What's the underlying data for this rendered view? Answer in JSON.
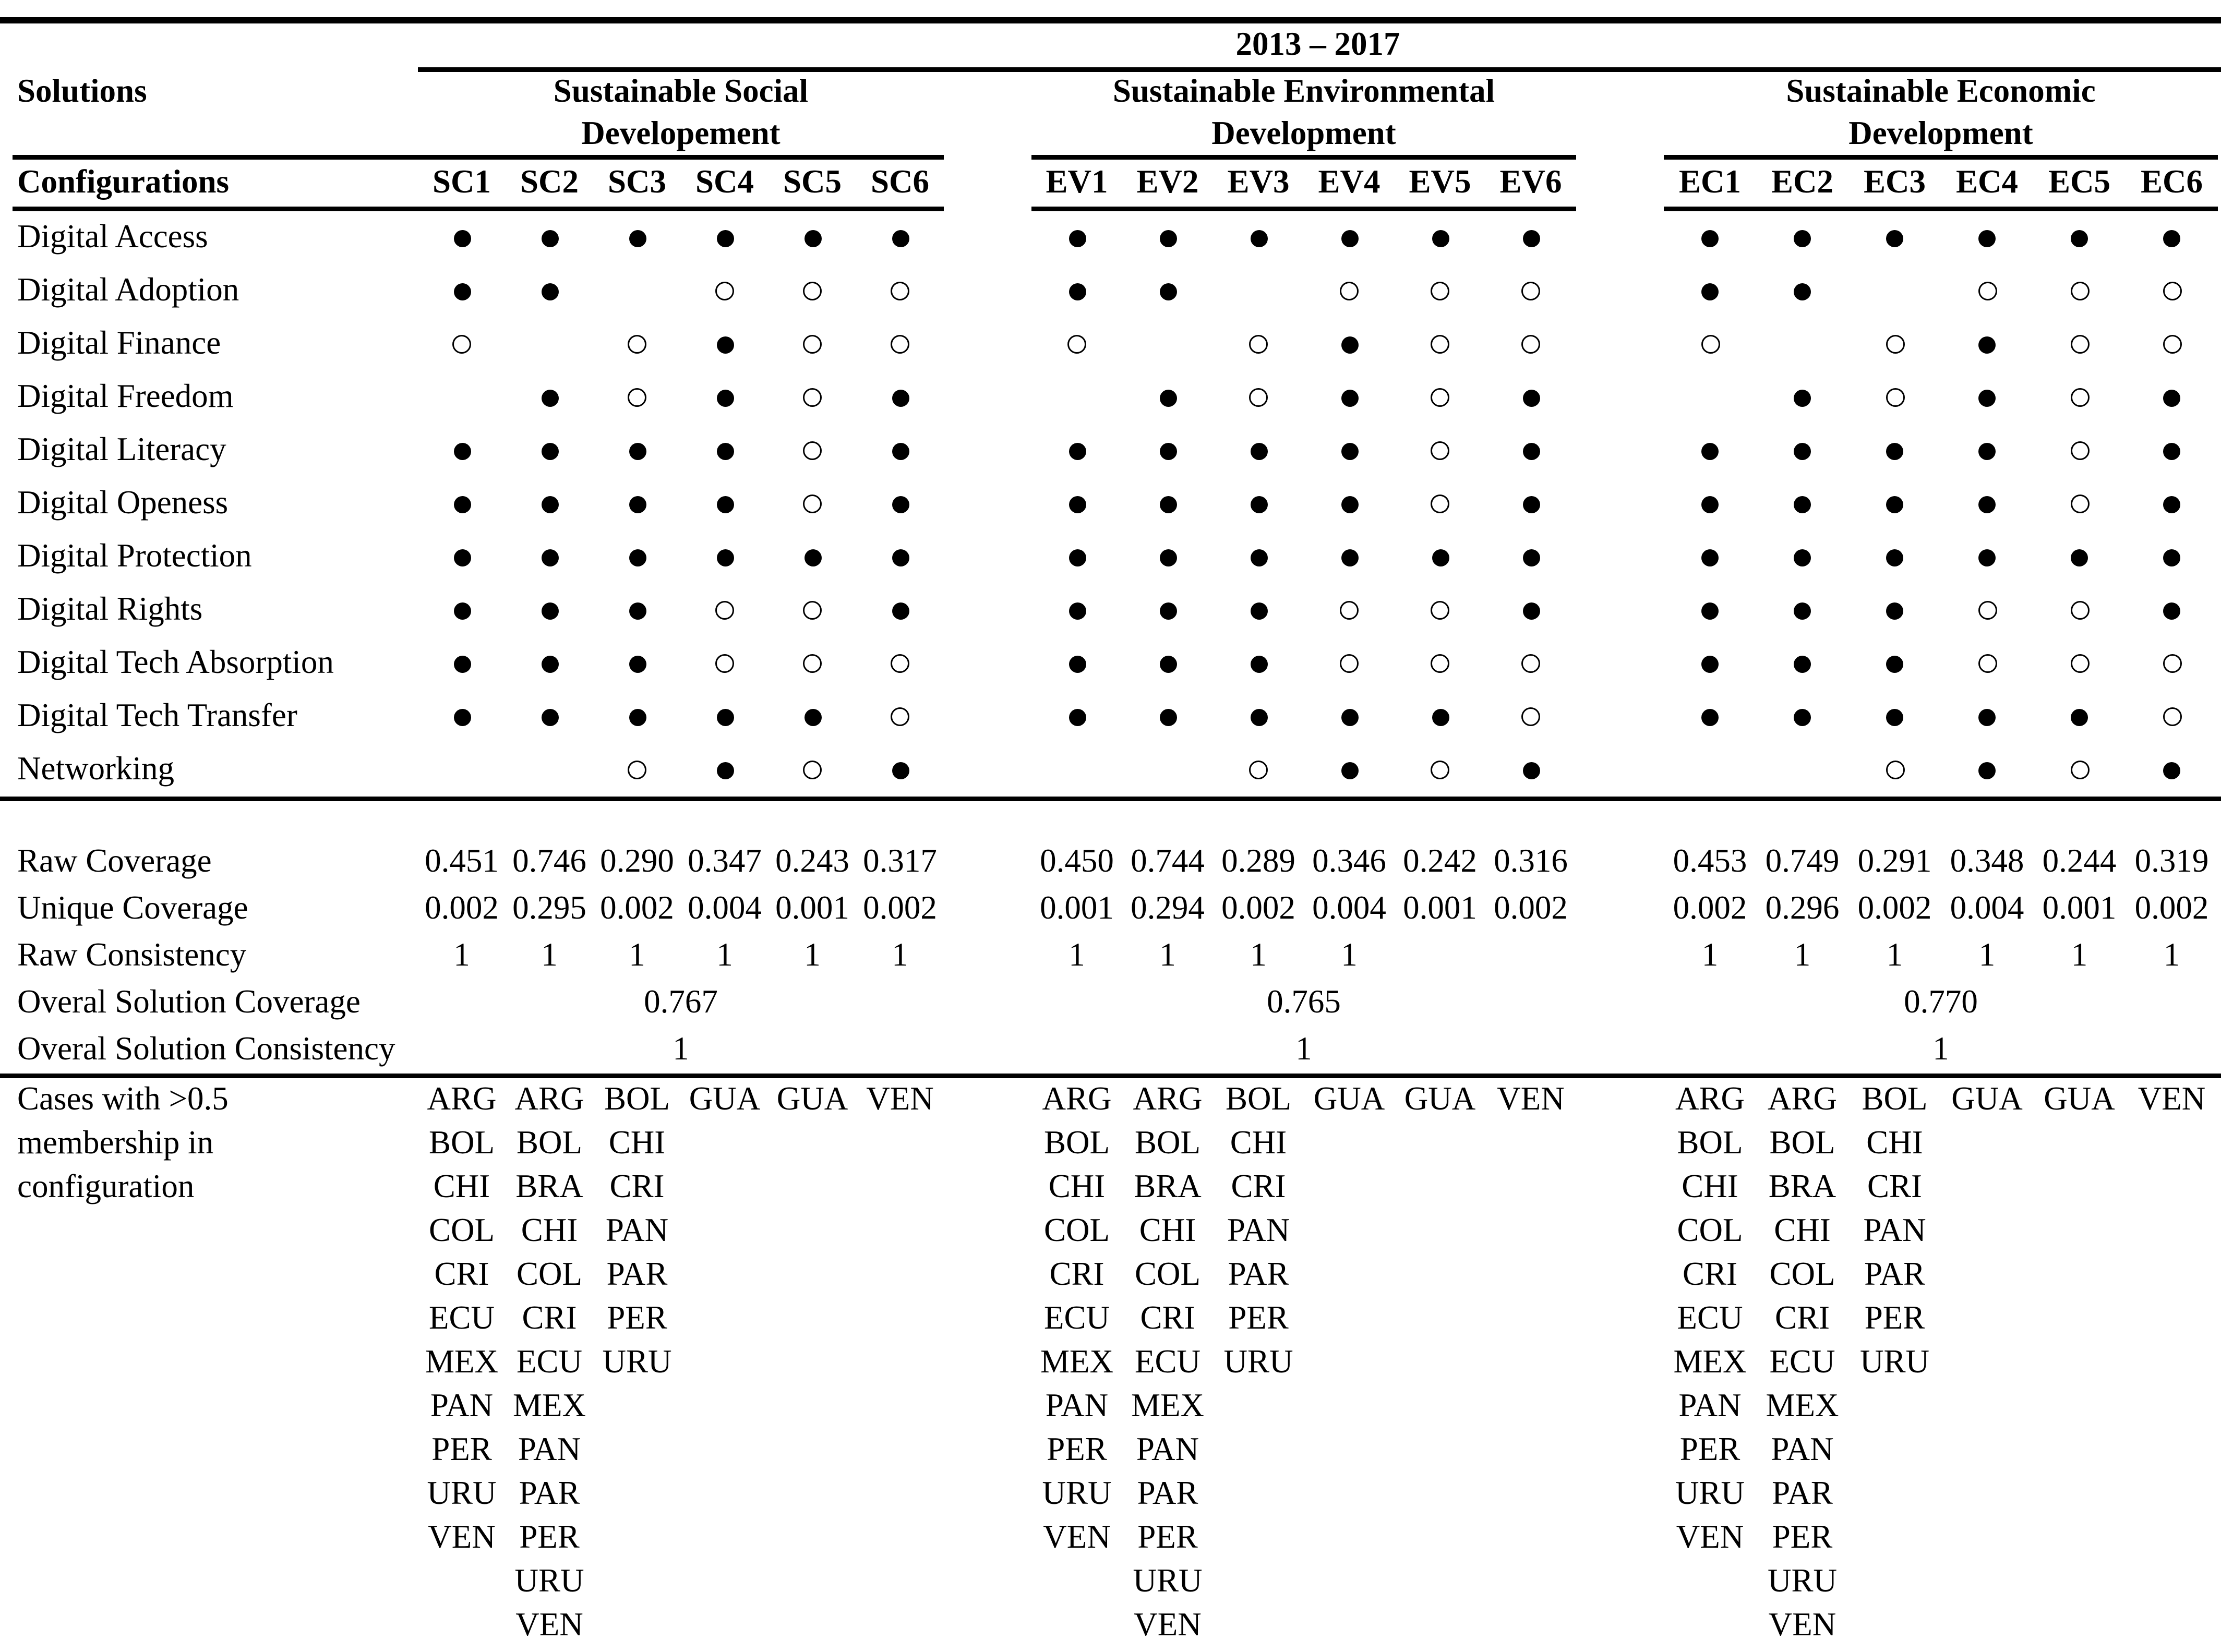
{
  "table": {
    "period": "2013 – 2017",
    "col_header_left_top": "Solutions",
    "col_header_left_bottom": "Configurations",
    "groups": [
      {
        "id": "sc",
        "title_line1": "Sustainable Social",
        "title_line2": "Developement",
        "columns": [
          "SC1",
          "SC2",
          "SC3",
          "SC4",
          "SC5",
          "SC6"
        ]
      },
      {
        "id": "ev",
        "title_line1": "Sustainable Environmental",
        "title_line2": "Development",
        "columns": [
          "EV1",
          "EV2",
          "EV3",
          "EV4",
          "EV5",
          "EV6"
        ]
      },
      {
        "id": "ec",
        "title_line1": "Sustainable Economic",
        "title_line2": "Development",
        "columns": [
          "EC1",
          "EC2",
          "EC3",
          "EC4",
          "EC5",
          "EC6"
        ]
      }
    ],
    "dot_legend": {
      "f": "filled-circle",
      "o": "open-circle",
      "": "blank"
    },
    "conditions": [
      {
        "label": "Digital Access",
        "sc": [
          "f",
          "f",
          "f",
          "f",
          "f",
          "f"
        ],
        "ev": [
          "f",
          "f",
          "f",
          "f",
          "f",
          "f"
        ],
        "ec": [
          "f",
          "f",
          "f",
          "f",
          "f",
          "f"
        ]
      },
      {
        "label": "Digital Adoption",
        "sc": [
          "f",
          "f",
          "",
          "o",
          "o",
          "o"
        ],
        "ev": [
          "f",
          "f",
          "",
          "o",
          "o",
          "o"
        ],
        "ec": [
          "f",
          "f",
          "",
          "o",
          "o",
          "o"
        ]
      },
      {
        "label": "Digital Finance",
        "sc": [
          "o",
          "",
          "o",
          "f",
          "o",
          "o"
        ],
        "ev": [
          "o",
          "",
          "o",
          "f",
          "o",
          "o"
        ],
        "ec": [
          "o",
          "",
          "o",
          "f",
          "o",
          "o"
        ]
      },
      {
        "label": "Digital Freedom",
        "sc": [
          "",
          "f",
          "o",
          "f",
          "o",
          "f"
        ],
        "ev": [
          "",
          "f",
          "o",
          "f",
          "o",
          "f"
        ],
        "ec": [
          "",
          "f",
          "o",
          "f",
          "o",
          "f"
        ]
      },
      {
        "label": "Digital Literacy",
        "sc": [
          "f",
          "f",
          "f",
          "f",
          "o",
          "f"
        ],
        "ev": [
          "f",
          "f",
          "f",
          "f",
          "o",
          "f"
        ],
        "ec": [
          "f",
          "f",
          "f",
          "f",
          "o",
          "f"
        ]
      },
      {
        "label": "Digital Openess",
        "sc": [
          "f",
          "f",
          "f",
          "f",
          "o",
          "f"
        ],
        "ev": [
          "f",
          "f",
          "f",
          "f",
          "o",
          "f"
        ],
        "ec": [
          "f",
          "f",
          "f",
          "f",
          "o",
          "f"
        ]
      },
      {
        "label": "Digital Protection",
        "sc": [
          "f",
          "f",
          "f",
          "f",
          "f",
          "f"
        ],
        "ev": [
          "f",
          "f",
          "f",
          "f",
          "f",
          "f"
        ],
        "ec": [
          "f",
          "f",
          "f",
          "f",
          "f",
          "f"
        ]
      },
      {
        "label": "Digital Rights",
        "sc": [
          "f",
          "f",
          "f",
          "o",
          "o",
          "f"
        ],
        "ev": [
          "f",
          "f",
          "f",
          "o",
          "o",
          "f"
        ],
        "ec": [
          "f",
          "f",
          "f",
          "o",
          "o",
          "f"
        ]
      },
      {
        "label": "Digital Tech Absorption",
        "sc": [
          "f",
          "f",
          "f",
          "o",
          "o",
          "o"
        ],
        "ev": [
          "f",
          "f",
          "f",
          "o",
          "o",
          "o"
        ],
        "ec": [
          "f",
          "f",
          "f",
          "o",
          "o",
          "o"
        ]
      },
      {
        "label": "Digital Tech Transfer",
        "sc": [
          "f",
          "f",
          "f",
          "f",
          "f",
          "o"
        ],
        "ev": [
          "f",
          "f",
          "f",
          "f",
          "f",
          "o"
        ],
        "ec": [
          "f",
          "f",
          "f",
          "f",
          "f",
          "o"
        ]
      },
      {
        "label": "Networking",
        "sc": [
          "",
          "",
          "o",
          "f",
          "o",
          "f"
        ],
        "ev": [
          "",
          "",
          "o",
          "f",
          "o",
          "f"
        ],
        "ec": [
          "",
          "",
          "o",
          "f",
          "o",
          "f"
        ]
      }
    ],
    "stats": {
      "raw_coverage": {
        "label": "Raw Coverage",
        "sc": [
          "0.451",
          "0.746",
          "0.290",
          "0.347",
          "0.243",
          "0.317"
        ],
        "ev": [
          "0.450",
          "0.744",
          "0.289",
          "0.346",
          "0.242",
          "0.316"
        ],
        "ec": [
          "0.453",
          "0.749",
          "0.291",
          "0.348",
          "0.244",
          "0.319"
        ]
      },
      "unique_coverage": {
        "label": "Unique Coverage",
        "sc": [
          "0.002",
          "0.295",
          "0.002",
          "0.004",
          "0.001",
          "0.002"
        ],
        "ev": [
          "0.001",
          "0.294",
          "0.002",
          "0.004",
          "0.001",
          "0.002"
        ],
        "ec": [
          "0.002",
          "0.296",
          "0.002",
          "0.004",
          "0.001",
          "0.002"
        ]
      },
      "raw_consistency": {
        "label": "Raw Consistency",
        "sc": [
          "1",
          "1",
          "1",
          "1",
          "1",
          "1"
        ],
        "ev": [
          "1",
          "1",
          "1",
          "1",
          "",
          ""
        ],
        "ec": [
          "1",
          "1",
          "1",
          "1",
          "1",
          "1"
        ]
      },
      "overall_coverage": {
        "label": "Overal Solution Coverage",
        "sc": "0.767",
        "ev": "0.765",
        "ec": "0.770"
      },
      "overall_consistency": {
        "label": "Overal Solution Consistency",
        "sc": "1",
        "ev": "1",
        "ec": "1"
      }
    },
    "cases": {
      "label_lines": [
        "Cases with >0.5",
        "membership in",
        "configuration"
      ],
      "sc": [
        [
          "ARG",
          "BOL",
          "CHI",
          "COL",
          "CRI",
          "ECU",
          "MEX",
          "PAN",
          "PER",
          "URU",
          "VEN"
        ],
        [
          "ARG",
          "BOL",
          "BRA",
          "CHI",
          "COL",
          "CRI",
          "ECU",
          "MEX",
          "PAN",
          "PAR",
          "PER",
          "URU",
          "VEN"
        ],
        [
          "BOL",
          "CHI",
          "CRI",
          "PAN",
          "PAR",
          "PER",
          "URU"
        ],
        [
          "GUA"
        ],
        [
          "GUA"
        ],
        [
          "VEN"
        ]
      ],
      "ev": [
        [
          "ARG",
          "BOL",
          "CHI",
          "COL",
          "CRI",
          "ECU",
          "MEX",
          "PAN",
          "PER",
          "URU",
          "VEN"
        ],
        [
          "ARG",
          "BOL",
          "BRA",
          "CHI",
          "COL",
          "CRI",
          "ECU",
          "MEX",
          "PAN",
          "PAR",
          "PER",
          "URU",
          "VEN"
        ],
        [
          "BOL",
          "CHI",
          "CRI",
          "PAN",
          "PAR",
          "PER",
          "URU"
        ],
        [
          "GUA"
        ],
        [
          "GUA"
        ],
        [
          "VEN"
        ]
      ],
      "ec": [
        [
          "ARG",
          "BOL",
          "CHI",
          "COL",
          "CRI",
          "ECU",
          "MEX",
          "PAN",
          "PER",
          "URU",
          "VEN"
        ],
        [
          "ARG",
          "BOL",
          "BRA",
          "CHI",
          "COL",
          "CRI",
          "ECU",
          "MEX",
          "PAN",
          "PAR",
          "PER",
          "URU",
          "VEN"
        ],
        [
          "BOL",
          "CHI",
          "CRI",
          "PAN",
          "PAR",
          "PER",
          "URU"
        ],
        [
          "GUA"
        ],
        [
          "GUA"
        ],
        [
          "VEN"
        ]
      ]
    }
  }
}
